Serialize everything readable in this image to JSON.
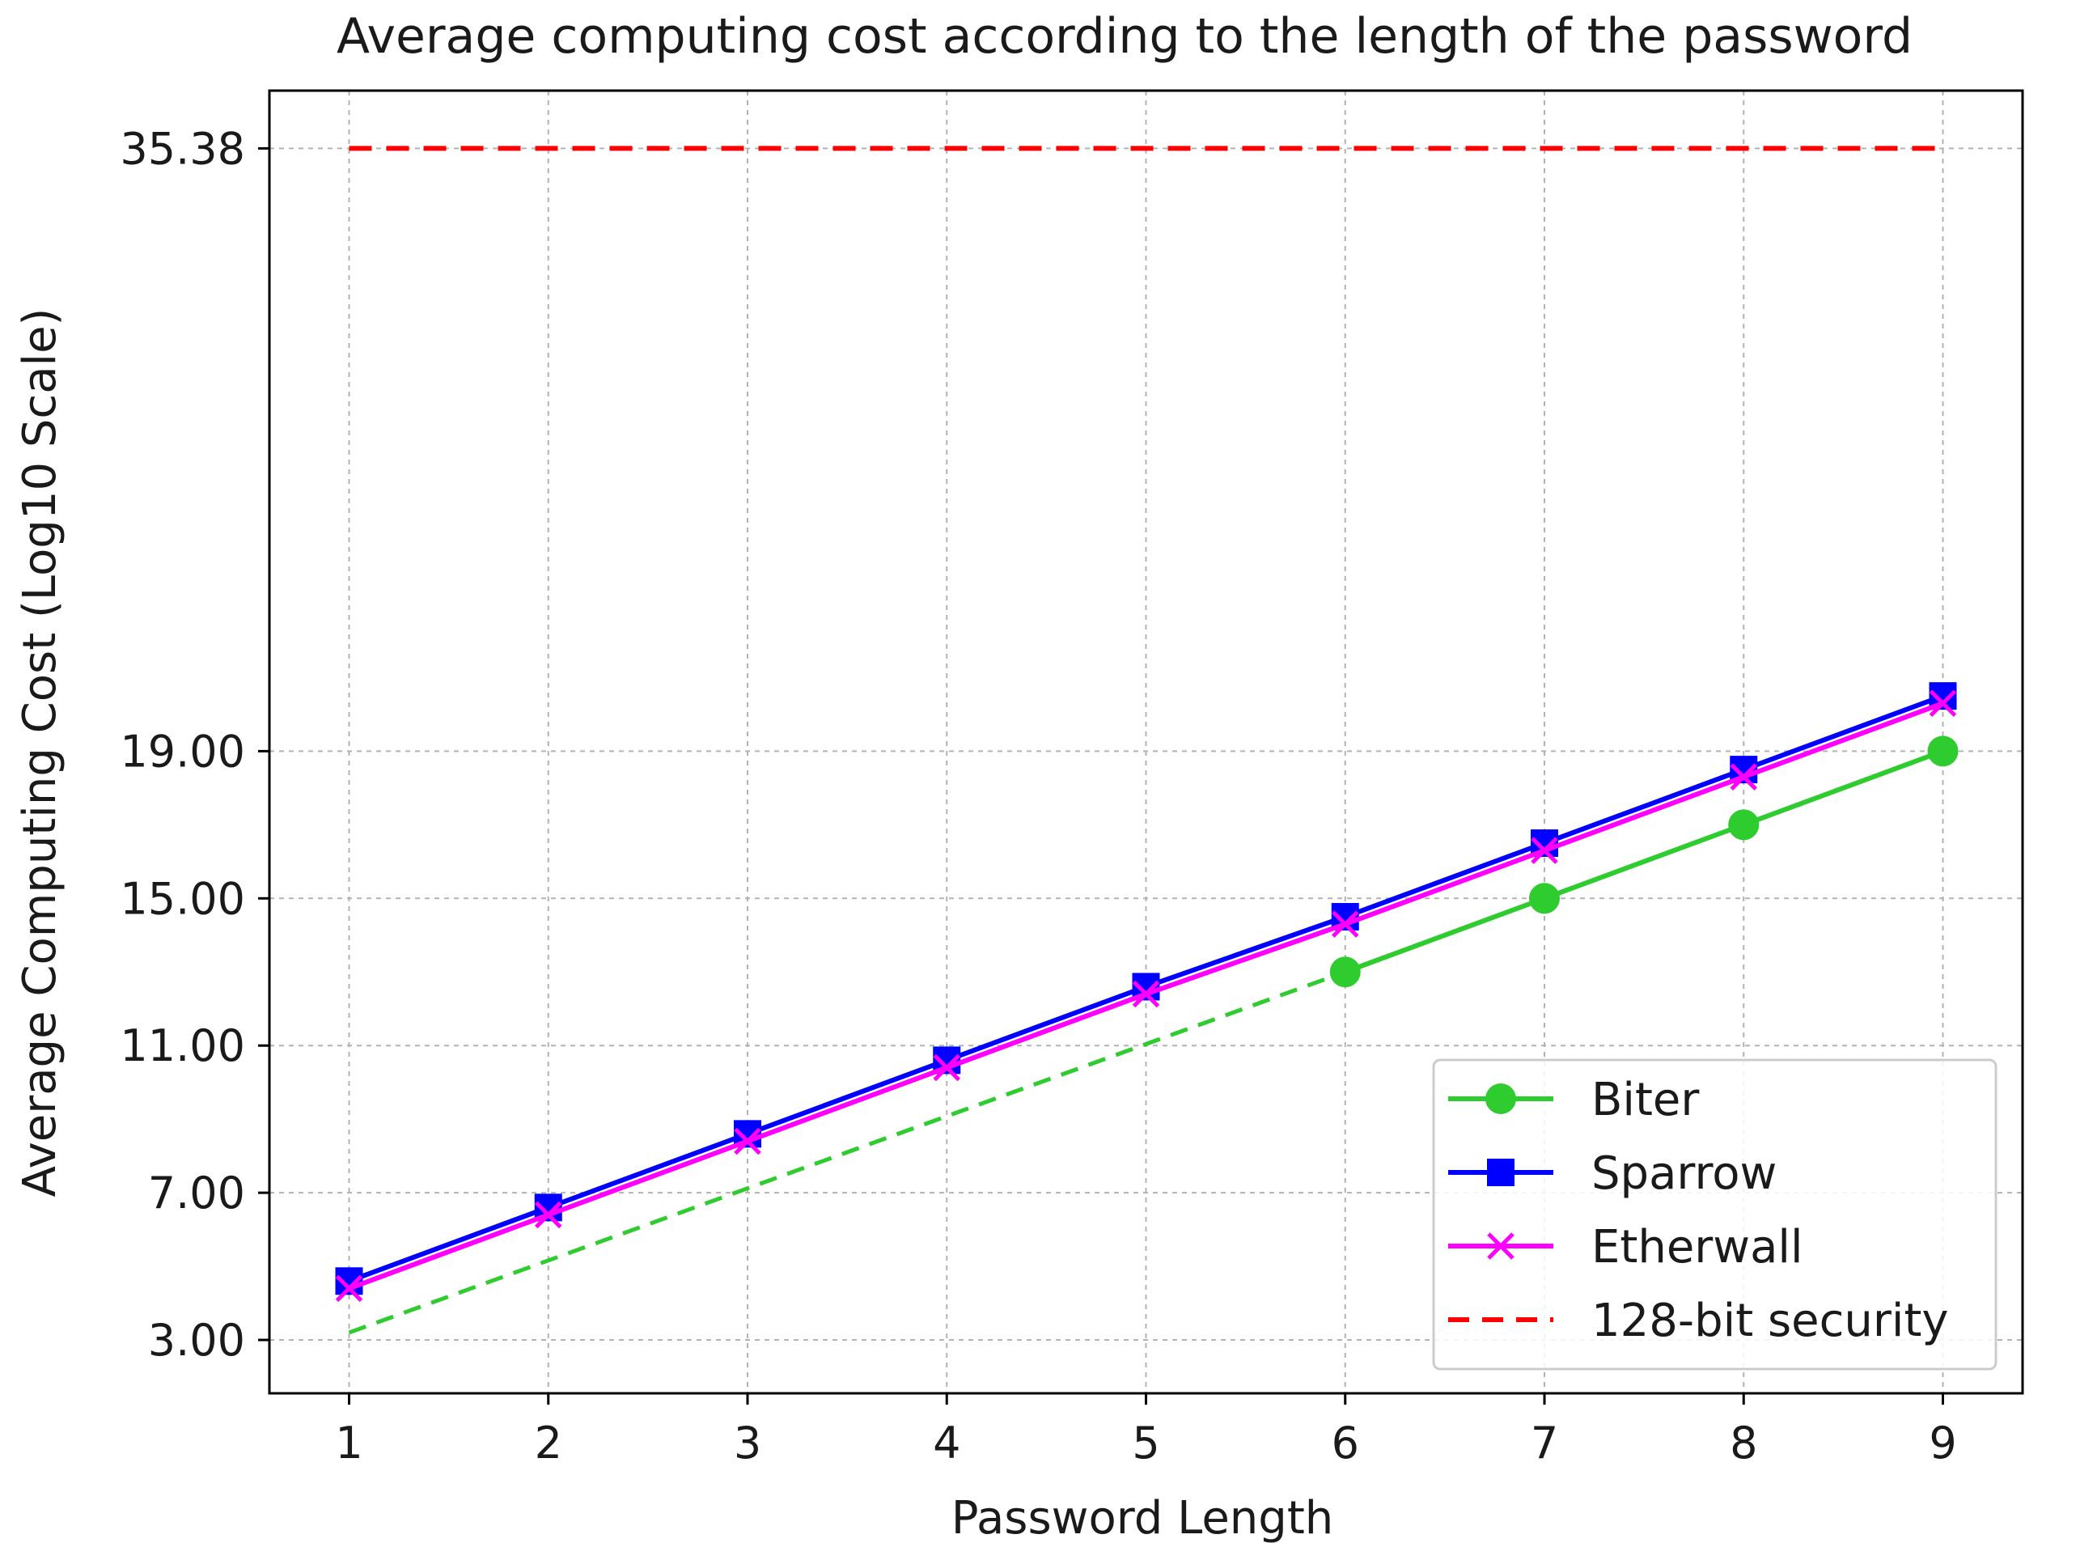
{
  "chart_data": {
    "type": "line",
    "title": "Average computing cost according to the length of the password",
    "xlabel": "Password Length",
    "ylabel": "Average Computing Cost (Log10 Scale)",
    "x": [
      1,
      2,
      3,
      4,
      5,
      6,
      7,
      8,
      9
    ],
    "xticks": [
      "1",
      "2",
      "3",
      "4",
      "5",
      "6",
      "7",
      "8",
      "9"
    ],
    "yticks": [
      {
        "value": 3.0,
        "label": "3.00"
      },
      {
        "value": 7.0,
        "label": "7.00"
      },
      {
        "value": 11.0,
        "label": "11.00"
      },
      {
        "value": 15.0,
        "label": "15.00"
      },
      {
        "value": 19.0,
        "label": "19.00"
      },
      {
        "value": 35.38,
        "label": "35.38"
      }
    ],
    "xlim": [
      0.6,
      9.4
    ],
    "ylim": [
      1.55,
      36.95
    ],
    "grid": true,
    "legend_position": "lower-right",
    "series": [
      {
        "name": "Biter",
        "color": "#2ecc2e",
        "marker": "circle",
        "x": [
          6,
          7,
          8,
          9
        ],
        "values": [
          13.0,
          15.0,
          17.0,
          19.0
        ],
        "extrapolated": {
          "x": [
            1,
            2,
            3,
            4,
            5,
            6
          ],
          "values": [
            3.2,
            5.16,
            7.12,
            9.08,
            11.04,
            13.0
          ],
          "style": "dashed"
        }
      },
      {
        "name": "Sparrow",
        "color": "#0000ff",
        "marker": "square",
        "x": [
          1,
          2,
          3,
          4,
          5,
          6,
          7,
          8,
          9
        ],
        "values": [
          4.6,
          6.6,
          8.6,
          10.6,
          12.6,
          14.5,
          16.5,
          18.5,
          20.5
        ]
      },
      {
        "name": "Etherwall",
        "color": "#ff00ff",
        "marker": "x",
        "x": [
          1,
          2,
          3,
          4,
          5,
          6,
          7,
          8,
          9
        ],
        "values": [
          4.4,
          6.4,
          8.4,
          10.4,
          12.4,
          14.3,
          16.3,
          18.3,
          20.3
        ]
      },
      {
        "name": "128-bit security",
        "color": "#ff0000",
        "style": "dashed",
        "x": [
          1,
          9
        ],
        "values": [
          35.38,
          35.38
        ]
      }
    ]
  }
}
